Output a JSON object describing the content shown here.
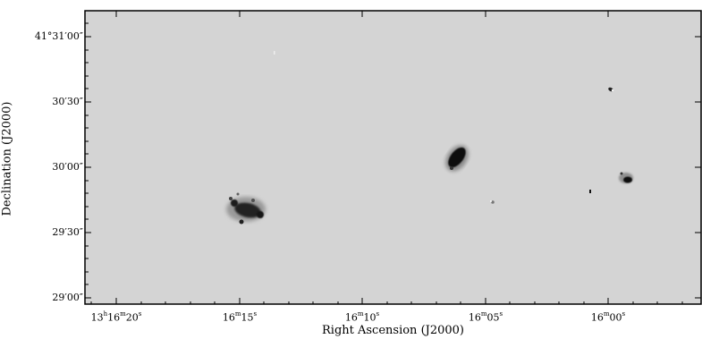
{
  "axes": {
    "xlabel": "Right Ascension (J2000)",
    "ylabel": "Declination (J2000)",
    "xticks": [
      {
        "h": "13",
        "m": "16",
        "s": "20"
      },
      {
        "h": "",
        "m": "16",
        "s": "15"
      },
      {
        "h": "",
        "m": "16",
        "s": "10"
      },
      {
        "h": "",
        "m": "16",
        "s": "05"
      },
      {
        "h": "",
        "m": "16",
        "s": "00"
      }
    ],
    "yticks": [
      "41°31′00″",
      "30′30″",
      "30′00″",
      "29′30″",
      "29′00″"
    ]
  },
  "image": {
    "background": "#d3d3d3",
    "frame_color": "#000000",
    "sources": [
      "galaxy-left",
      "galaxy-center",
      "galaxy-right"
    ]
  }
}
